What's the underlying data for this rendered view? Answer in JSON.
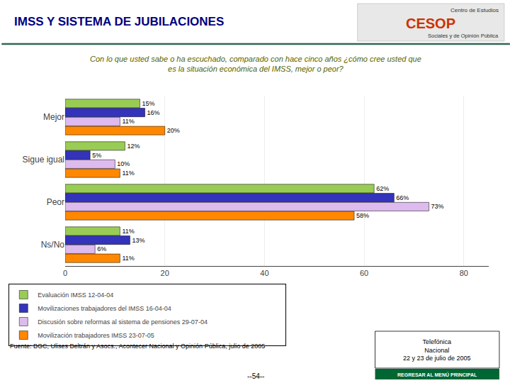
{
  "chart_data": {
    "type": "bar",
    "orientation": "horizontal",
    "title": "IMSS Y SISTEMA DE JUBILACIONES",
    "subtitle": "Con lo que usted sabe o ha escuchado, comparado con hace cinco años ¿cómo cree usted que\nes la situación económica del IMSS, mejor o peor?",
    "categories": [
      "Mejor",
      "Sigue igual",
      "Peor",
      "Ns/No"
    ],
    "series": [
      {
        "name": "Movilización trabajadores IMSS 23-07-05",
        "color": "#ff8800",
        "values": [
          20,
          11,
          58,
          11
        ],
        "value_labels": [
          "20%",
          "11%",
          "58%",
          "11%"
        ]
      },
      {
        "name": "Discusión sobre reformas al sistema de pensiones 29-07-04",
        "color": "#ddbbee",
        "values": [
          11,
          10,
          73,
          6
        ],
        "value_labels": [
          "11%",
          "10%",
          "73%",
          "6%"
        ]
      },
      {
        "name": "Movilizaciones trabajadores del IMSS 16-04-04",
        "color": "#3333bb",
        "values": [
          16,
          5,
          66,
          13
        ],
        "value_labels": [
          "16%",
          "5%",
          "66%",
          "13%"
        ]
      },
      {
        "name": "Evaluación IMSS 12-04-04",
        "color": "#99cc55",
        "values": [
          15,
          12,
          62,
          11
        ],
        "value_labels": [
          "15%",
          "12%",
          "62%",
          "11%"
        ]
      }
    ],
    "xlim": [
      0,
      85
    ],
    "xticks": [
      0,
      20,
      40,
      60,
      80
    ],
    "grid": true,
    "legend": "bottom",
    "data_labels": true,
    "annotations": [
      "Fuente: BGC, Ulises Beltrán y Asocs., Acontecer Nacional y Opinión Pública, julio de 2005",
      "--54--",
      "Telefónica\nNacional\n22 y 23 de julio de 2005",
      "REGRESAR AL MENÚ PRINCIPAL",
      "Centro de Estudios",
      "CESOP",
      "Sociales y de Opinión Pública"
    ]
  }
}
